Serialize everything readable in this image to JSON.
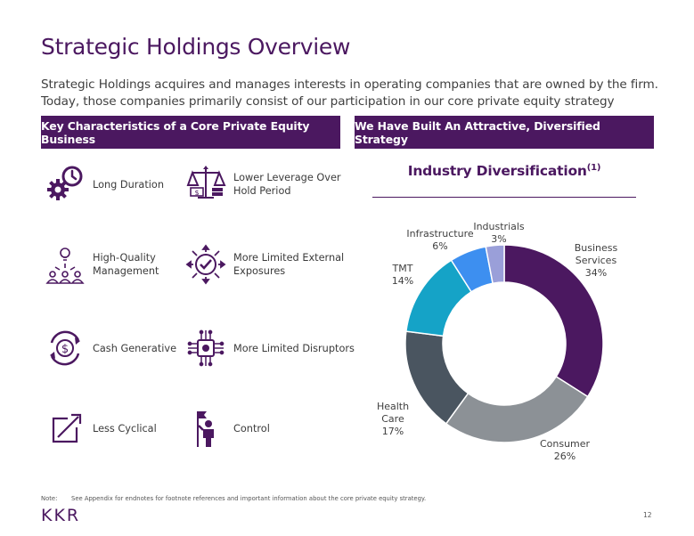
{
  "title": "Strategic Holdings Overview",
  "subtitle": "Strategic Holdings acquires and manages interests in operating companies that are owned by the firm. Today, those companies primarily consist of our participation in our core private equity strategy",
  "left_banner": "Key Characteristics of a Core Private Equity Business",
  "right_banner": "We Have Built An Attractive, Diversified Strategy",
  "features": [
    {
      "label": "Long Duration",
      "icon": "gears-clock-icon"
    },
    {
      "label": "Lower Leverage Over\nHold Period",
      "icon": "scale-icon"
    },
    {
      "label": "High-Quality\nManagement",
      "icon": "team-lightbulb-icon"
    },
    {
      "label": "More Limited External\nExposures",
      "icon": "shield-arrows-icon"
    },
    {
      "label": "Cash Generative",
      "icon": "dollar-cycle-icon"
    },
    {
      "label": "More Limited Disruptors",
      "icon": "circuit-chip-icon"
    },
    {
      "label": "Less Cyclical",
      "icon": "arrow-box-icon"
    },
    {
      "label": "Control",
      "icon": "person-flag-icon"
    }
  ],
  "chart_title": "Industry Diversification",
  "chart_title_sup": "(1)",
  "chart_data": {
    "type": "pie",
    "title": "Industry Diversification",
    "categories": [
      "Business Services",
      "Consumer",
      "Health Care",
      "TMT",
      "Infrastructure",
      "Industrials"
    ],
    "values": [
      34,
      26,
      17,
      14,
      6,
      3
    ],
    "unit": "%",
    "colors": [
      "#4b1860",
      "#8c9196",
      "#4a5560",
      "#15a3c7",
      "#3d8ff0",
      "#9a9fd9"
    ],
    "labels": [
      {
        "lines": [
          "Business",
          "Services",
          "34%"
        ]
      },
      {
        "lines": [
          "Consumer",
          "26%"
        ]
      },
      {
        "lines": [
          "Health",
          "Care",
          "17%"
        ]
      },
      {
        "lines": [
          "TMT",
          "14%"
        ]
      },
      {
        "lines": [
          "Infrastructure",
          "6%"
        ]
      },
      {
        "lines": [
          "Industrials",
          "3%"
        ]
      }
    ]
  },
  "note_key": "Note:",
  "note_text": "See Appendix for endnotes for footnote references and important information about the core private equity strategy.",
  "logo": "KKR",
  "page_number": "12",
  "colors": {
    "brand": "#4b1860"
  }
}
